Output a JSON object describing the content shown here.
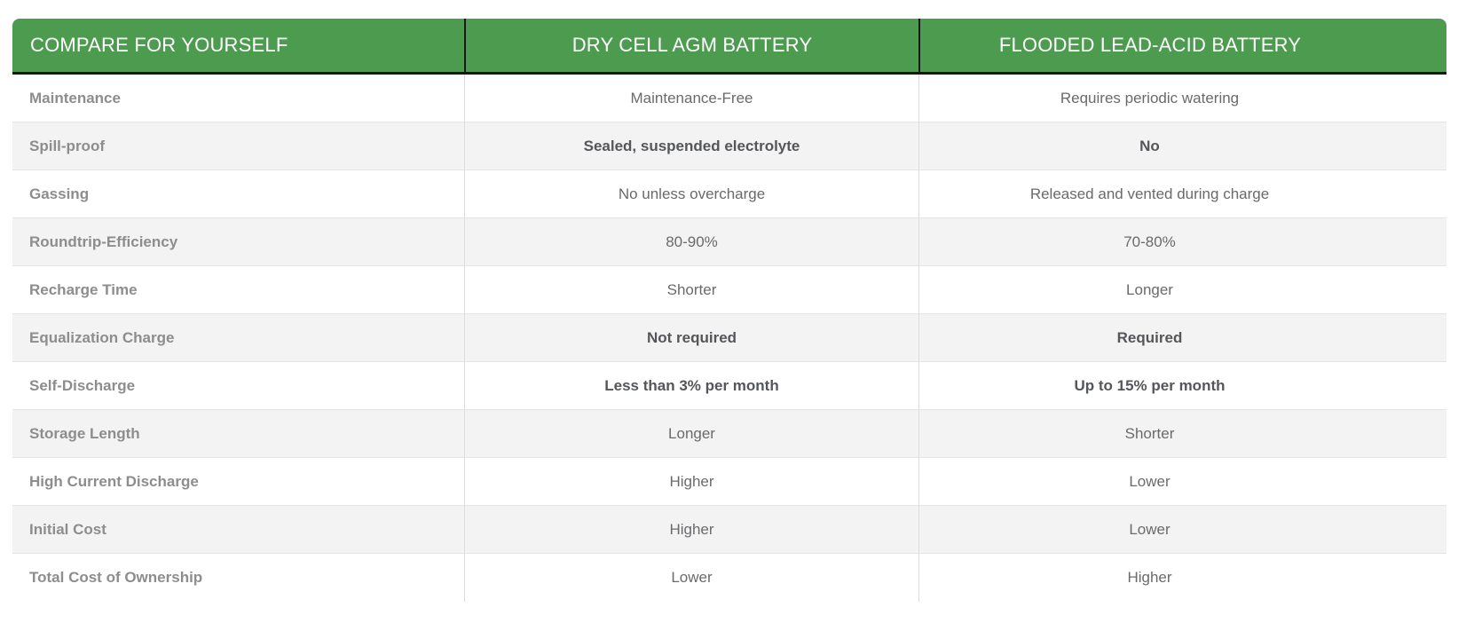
{
  "table": {
    "headers": {
      "compare": "COMPARE FOR YOURSELF",
      "agm": "DRY CELL AGM BATTERY",
      "flooded": "FLOODED LEAD-ACID BATTERY"
    },
    "rows": [
      {
        "label": "Maintenance",
        "agm": "Maintenance-Free",
        "flooded": "Requires periodic watering"
      },
      {
        "label": "Spill-proof",
        "agm": "Sealed, suspended electrolyte",
        "flooded": "No"
      },
      {
        "label": "Gassing",
        "agm": "No unless overcharge",
        "flooded": "Released and vented during charge"
      },
      {
        "label": "Roundtrip-Efficiency",
        "agm": "80-90%",
        "flooded": "70-80%"
      },
      {
        "label": "Recharge Time",
        "agm": "Shorter",
        "flooded": "Longer"
      },
      {
        "label": "Equalization Charge",
        "agm": "Not required",
        "flooded": "Required"
      },
      {
        "label": "Self-Discharge",
        "agm": "Less than 3% per month",
        "flooded": "Up to 15% per month"
      },
      {
        "label": "Storage Length",
        "agm": "Longer",
        "flooded": "Shorter"
      },
      {
        "label": "High Current Discharge",
        "agm": "Higher",
        "flooded": "Lower"
      },
      {
        "label": "Initial Cost",
        "agm": "Higher",
        "flooded": "Lower"
      },
      {
        "label": "Total Cost of Ownership",
        "agm": "Lower",
        "flooded": "Higher"
      }
    ],
    "colors": {
      "header_bg": "#4c9b4f",
      "header_text": "#ffffff",
      "header_border": "#161616",
      "label_text": "#8d8d8d",
      "value_text": "#696a6c",
      "value_text_strong": "#545659",
      "row_alt_bg": "#f3f3f3",
      "row_border": "#e4e4e4",
      "divider": "#dcdcdc",
      "page_bg": "#ffffff"
    }
  },
  "chart_data": {
    "type": "table",
    "title": "COMPARE FOR YOURSELF",
    "columns": [
      "COMPARE FOR YOURSELF",
      "DRY CELL AGM BATTERY",
      "FLOODED LEAD-ACID BATTERY"
    ],
    "rows": [
      [
        "Maintenance",
        "Maintenance-Free",
        "Requires periodic watering"
      ],
      [
        "Spill-proof",
        "Sealed, suspended electrolyte",
        "No"
      ],
      [
        "Gassing",
        "No unless overcharge",
        "Released and vented during charge"
      ],
      [
        "Roundtrip-Efficiency",
        "80-90%",
        "70-80%"
      ],
      [
        "Recharge Time",
        "Shorter",
        "Longer"
      ],
      [
        "Equalization Charge",
        "Not required",
        "Required"
      ],
      [
        "Self-Discharge",
        "Less than 3% per month",
        "Up to 15% per month"
      ],
      [
        "Storage Length",
        "Longer",
        "Shorter"
      ],
      [
        "High Current Discharge",
        "Higher",
        "Lower"
      ],
      [
        "Initial Cost",
        "Higher",
        "Lower"
      ],
      [
        "Total Cost of Ownership",
        "Lower",
        "Higher"
      ]
    ],
    "layout_hints": {
      "header_style": "green banner, white caps text, rounded top corners, black underline",
      "row_striping": "white / light-gray alternating, starting white",
      "bold_value_rows": [
        "Spill-proof",
        "Equalization Charge",
        "Self-Discharge"
      ],
      "column_alignment": [
        "left",
        "center",
        "center"
      ]
    }
  }
}
